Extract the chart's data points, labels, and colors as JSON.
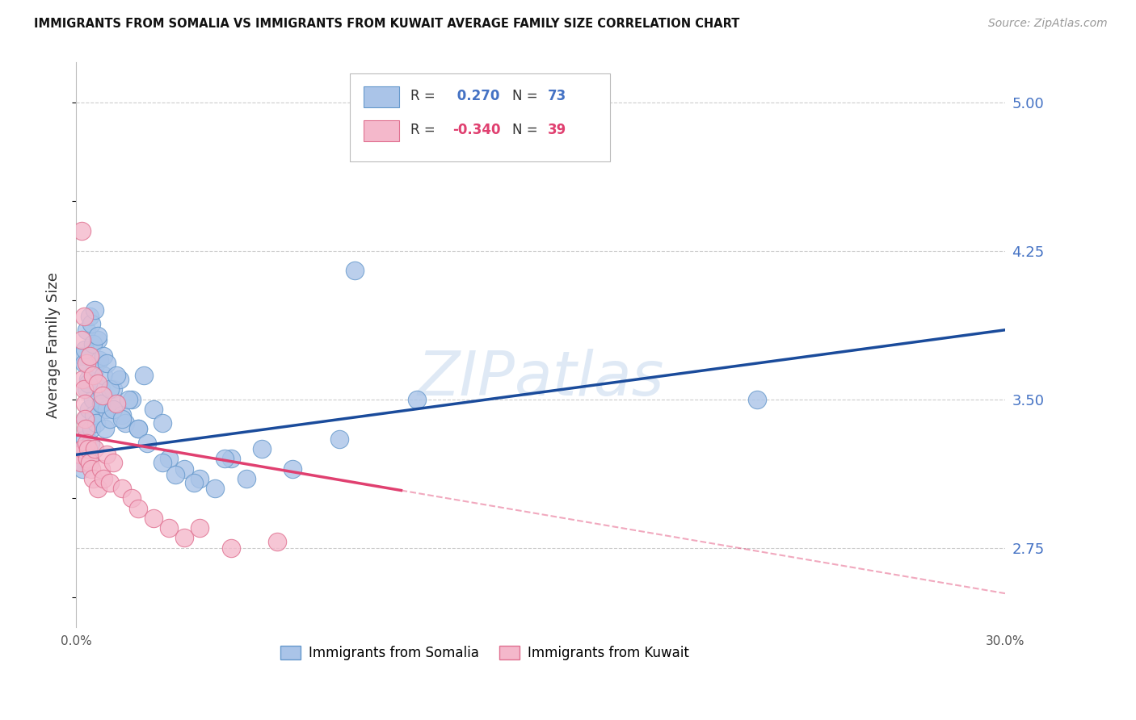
{
  "title": "IMMIGRANTS FROM SOMALIA VS IMMIGRANTS FROM KUWAIT AVERAGE FAMILY SIZE CORRELATION CHART",
  "source": "Source: ZipAtlas.com",
  "ylabel": "Average Family Size",
  "yticks": [
    2.75,
    3.5,
    4.25,
    5.0
  ],
  "xlim": [
    0.0,
    30.0
  ],
  "ylim": [
    2.35,
    5.2
  ],
  "somalia_color": "#aac4e8",
  "somalia_edge_color": "#6699cc",
  "kuwait_color": "#f4b8cb",
  "kuwait_edge_color": "#e07090",
  "somalia_line_color": "#1a4b9b",
  "kuwait_line_color": "#e04070",
  "legend_R_somalia": "R =  0.270",
  "legend_N_somalia": "N = 73",
  "legend_R_kuwait": "R = -0.340",
  "legend_N_kuwait": "N = 39",
  "watermark": "ZIPatlas",
  "somalia_line_x0": 0.0,
  "somalia_line_y0": 3.22,
  "somalia_line_x1": 30.0,
  "somalia_line_y1": 3.85,
  "kuwait_line_x0": 0.0,
  "kuwait_line_y0": 3.32,
  "kuwait_line_x1": 30.0,
  "kuwait_line_y1": 2.52,
  "kuwait_solid_end": 10.5,
  "somalia_scatter_x": [
    0.15,
    0.18,
    0.2,
    0.22,
    0.25,
    0.28,
    0.3,
    0.32,
    0.35,
    0.38,
    0.4,
    0.42,
    0.45,
    0.48,
    0.5,
    0.55,
    0.58,
    0.6,
    0.65,
    0.7,
    0.75,
    0.8,
    0.85,
    0.9,
    0.95,
    1.0,
    1.1,
    1.2,
    1.3,
    1.4,
    1.5,
    1.6,
    1.8,
    2.0,
    2.2,
    2.5,
    2.8,
    3.0,
    3.5,
    4.0,
    4.5,
    5.0,
    6.0,
    7.0,
    8.5,
    11.0,
    0.2,
    0.25,
    0.3,
    0.35,
    0.4,
    0.45,
    0.5,
    0.55,
    0.6,
    0.7,
    0.8,
    0.9,
    1.0,
    1.1,
    1.2,
    1.3,
    1.5,
    1.7,
    2.0,
    2.3,
    2.8,
    3.2,
    3.8,
    4.8,
    9.0,
    22.0,
    5.5
  ],
  "somalia_scatter_y": [
    3.22,
    3.2,
    3.18,
    3.15,
    3.25,
    3.3,
    3.22,
    3.4,
    3.55,
    3.35,
    3.6,
    3.45,
    3.2,
    3.28,
    3.35,
    3.5,
    3.42,
    3.65,
    3.38,
    3.8,
    3.7,
    3.55,
    3.48,
    3.62,
    3.35,
    3.45,
    3.4,
    3.55,
    3.48,
    3.6,
    3.42,
    3.38,
    3.5,
    3.35,
    3.62,
    3.45,
    3.38,
    3.2,
    3.15,
    3.1,
    3.05,
    3.2,
    3.25,
    3.15,
    3.3,
    3.5,
    3.72,
    3.68,
    3.75,
    3.85,
    3.58,
    3.92,
    3.88,
    3.78,
    3.95,
    3.82,
    3.48,
    3.72,
    3.68,
    3.55,
    3.45,
    3.62,
    3.4,
    3.5,
    3.35,
    3.28,
    3.18,
    3.12,
    3.08,
    3.2,
    4.15,
    3.5,
    3.1
  ],
  "kuwait_scatter_x": [
    0.12,
    0.15,
    0.18,
    0.2,
    0.22,
    0.25,
    0.28,
    0.3,
    0.32,
    0.35,
    0.38,
    0.4,
    0.45,
    0.5,
    0.55,
    0.6,
    0.7,
    0.8,
    0.9,
    1.0,
    1.1,
    1.2,
    1.5,
    1.8,
    2.0,
    2.5,
    3.0,
    3.5,
    4.0,
    5.0,
    6.5,
    0.18,
    0.25,
    0.35,
    0.45,
    0.55,
    0.7,
    0.85,
    1.3
  ],
  "kuwait_scatter_y": [
    3.22,
    3.18,
    3.8,
    3.6,
    3.25,
    3.55,
    3.48,
    3.4,
    3.35,
    3.28,
    3.2,
    3.25,
    3.18,
    3.15,
    3.1,
    3.25,
    3.05,
    3.15,
    3.1,
    3.22,
    3.08,
    3.18,
    3.05,
    3.0,
    2.95,
    2.9,
    2.85,
    2.8,
    2.85,
    2.75,
    2.78,
    4.35,
    3.92,
    3.68,
    3.72,
    3.62,
    3.58,
    3.52,
    3.48
  ]
}
